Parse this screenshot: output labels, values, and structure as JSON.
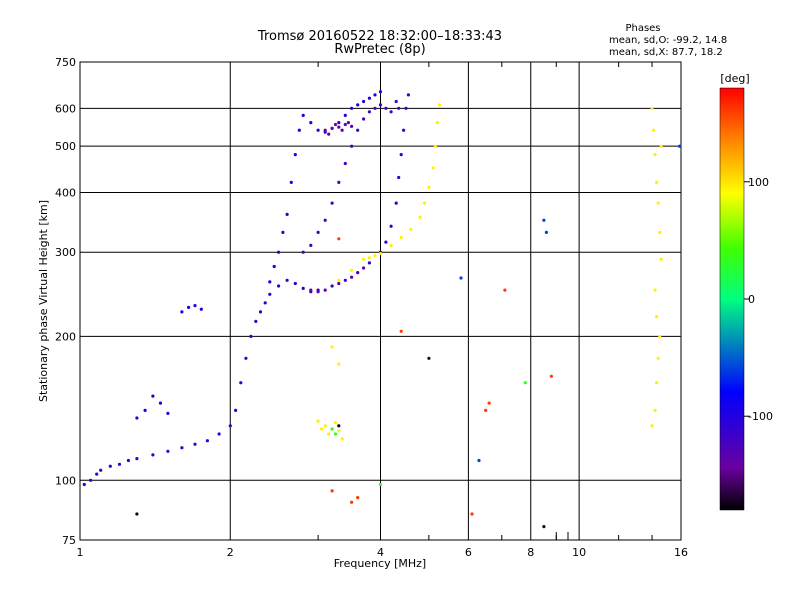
{
  "chart_data": {
    "type": "scatter",
    "title": "Tromsø 20160522 18:32:00–18:33:43",
    "subtitle": "RwPretec (8p)",
    "xlabel": "Frequency [MHz]",
    "ylabel": "Stationary phase Virtual Height [km]",
    "x_scale": "log2",
    "y_scale": "log",
    "xlim": [
      1,
      16
    ],
    "ylim": [
      75,
      750
    ],
    "x_ticks": [
      1,
      2,
      4,
      6,
      8,
      10,
      16
    ],
    "y_ticks": [
      75,
      100,
      200,
      300,
      400,
      500,
      600,
      750
    ],
    "grid": true,
    "stats": {
      "heading": "Phases",
      "line_o": "mean, sd,O: -99.2, 14.8",
      "line_x": "mean, sd,X:  87.7, 18.2"
    },
    "colorbar": {
      "label": "[deg]",
      "ticks": [
        100,
        0,
        -100
      ],
      "range": [
        -180,
        180
      ]
    },
    "series": [
      {
        "phase": -110,
        "points": [
          [
            1.02,
            98
          ],
          [
            1.05,
            100
          ],
          [
            1.08,
            103
          ],
          [
            1.1,
            105
          ],
          [
            1.15,
            107
          ],
          [
            1.2,
            108
          ],
          [
            1.25,
            110
          ],
          [
            1.3,
            111
          ],
          [
            1.4,
            113
          ],
          [
            1.5,
            115
          ],
          [
            1.6,
            117
          ],
          [
            1.7,
            119
          ],
          [
            1.8,
            121
          ],
          [
            1.9,
            125
          ],
          [
            2.0,
            130
          ],
          [
            2.05,
            140
          ],
          [
            2.1,
            160
          ],
          [
            2.15,
            180
          ],
          [
            2.2,
            200
          ],
          [
            2.25,
            215
          ],
          [
            2.3,
            225
          ],
          [
            2.35,
            235
          ],
          [
            2.4,
            245
          ],
          [
            2.5,
            255
          ],
          [
            2.6,
            262
          ],
          [
            2.7,
            258
          ],
          [
            2.8,
            252
          ],
          [
            2.9,
            248
          ],
          [
            3.0,
            250
          ],
          [
            3.2,
            255
          ],
          [
            3.4,
            262
          ],
          [
            3.6,
            272
          ],
          [
            3.8,
            285
          ],
          [
            4.0,
            300
          ],
          [
            4.1,
            315
          ],
          [
            4.2,
            340
          ],
          [
            4.3,
            380
          ],
          [
            4.35,
            430
          ],
          [
            4.4,
            480
          ],
          [
            4.45,
            540
          ],
          [
            4.5,
            600
          ],
          [
            4.55,
            640
          ]
        ]
      },
      {
        "phase": -100,
        "points": [
          [
            1.3,
            135
          ],
          [
            1.35,
            140
          ],
          [
            1.4,
            150
          ],
          [
            1.45,
            145
          ],
          [
            1.5,
            138
          ],
          [
            1.6,
            225
          ],
          [
            1.65,
            230
          ],
          [
            1.7,
            232
          ],
          [
            1.75,
            228
          ],
          [
            2.4,
            260
          ],
          [
            2.45,
            280
          ],
          [
            2.5,
            300
          ],
          [
            2.55,
            330
          ],
          [
            2.6,
            360
          ],
          [
            2.65,
            420
          ],
          [
            2.7,
            480
          ],
          [
            2.75,
            540
          ],
          [
            2.8,
            580
          ],
          [
            2.9,
            560
          ],
          [
            3.0,
            540
          ],
          [
            3.1,
            535
          ],
          [
            3.2,
            545
          ],
          [
            3.3,
            560
          ],
          [
            3.4,
            580
          ],
          [
            3.5,
            600
          ],
          [
            3.6,
            610
          ],
          [
            3.7,
            620
          ],
          [
            3.8,
            630
          ],
          [
            3.9,
            640
          ],
          [
            4.0,
            650
          ]
        ]
      },
      {
        "phase": -120,
        "points": [
          [
            2.8,
            300
          ],
          [
            2.9,
            310
          ],
          [
            3.0,
            330
          ],
          [
            3.1,
            350
          ],
          [
            3.2,
            380
          ],
          [
            3.3,
            420
          ],
          [
            3.4,
            460
          ],
          [
            3.5,
            500
          ],
          [
            3.6,
            540
          ],
          [
            3.7,
            570
          ],
          [
            3.8,
            590
          ],
          [
            3.9,
            600
          ],
          [
            4.0,
            610
          ],
          [
            4.1,
            600
          ],
          [
            4.2,
            590
          ],
          [
            4.3,
            620
          ],
          [
            4.35,
            600
          ]
        ]
      },
      {
        "phase": -140,
        "points": [
          [
            3.1,
            540
          ],
          [
            3.15,
            530
          ],
          [
            3.2,
            545
          ],
          [
            3.25,
            555
          ],
          [
            3.3,
            548
          ],
          [
            3.35,
            540
          ],
          [
            3.4,
            555
          ],
          [
            3.45,
            560
          ],
          [
            3.5,
            550
          ],
          [
            2.9,
            250
          ],
          [
            3.0,
            248
          ],
          [
            3.1,
            250
          ],
          [
            3.3,
            258
          ],
          [
            3.5,
            266
          ],
          [
            3.7,
            278
          ]
        ]
      },
      {
        "phase": 95,
        "points": [
          [
            3.3,
            262
          ],
          [
            3.5,
            275
          ],
          [
            3.7,
            290
          ],
          [
            3.8,
            292
          ],
          [
            3.9,
            295
          ],
          [
            4.0,
            298
          ],
          [
            4.2,
            310
          ],
          [
            4.4,
            322
          ],
          [
            4.6,
            335
          ],
          [
            4.8,
            355
          ],
          [
            4.9,
            380
          ],
          [
            5.0,
            410
          ],
          [
            5.1,
            450
          ],
          [
            5.15,
            500
          ],
          [
            5.2,
            560
          ],
          [
            5.25,
            610
          ],
          [
            3.1,
            130
          ],
          [
            3.15,
            125
          ],
          [
            3.2,
            128
          ],
          [
            3.25,
            132
          ],
          [
            3.3,
            127
          ],
          [
            3.35,
            122
          ],
          [
            3.0,
            133
          ],
          [
            3.05,
            128
          ],
          [
            14,
            600
          ],
          [
            14.1,
            540
          ],
          [
            14.2,
            480
          ],
          [
            14.3,
            420
          ],
          [
            14.4,
            380
          ],
          [
            14.5,
            330
          ],
          [
            14.6,
            290
          ],
          [
            14.2,
            250
          ],
          [
            14.3,
            220
          ],
          [
            14.5,
            200
          ],
          [
            14.4,
            180
          ],
          [
            14.3,
            160
          ],
          [
            14.2,
            140
          ],
          [
            14.0,
            130
          ],
          [
            14.6,
            500
          ],
          [
            3.2,
            190
          ],
          [
            3.3,
            175
          ]
        ]
      },
      {
        "phase": 160,
        "points": [
          [
            3.3,
            320
          ],
          [
            3.5,
            90
          ],
          [
            3.6,
            92
          ],
          [
            4.4,
            205
          ],
          [
            6.1,
            85
          ],
          [
            6.5,
            140
          ],
          [
            6.6,
            145
          ],
          [
            7.1,
            250
          ],
          [
            8.8,
            165
          ],
          [
            3.2,
            95
          ]
        ]
      },
      {
        "phase": 30,
        "points": [
          [
            3.2,
            128
          ],
          [
            3.25,
            125
          ],
          [
            4.0,
            98
          ],
          [
            7.8,
            160
          ],
          [
            3.3,
            130
          ]
        ]
      },
      {
        "phase": -60,
        "points": [
          [
            5.8,
            265
          ],
          [
            6.3,
            110
          ],
          [
            8.5,
            350
          ],
          [
            8.6,
            330
          ],
          [
            15.9,
            500
          ]
        ]
      },
      {
        "phase": -170,
        "points": [
          [
            3.3,
            130
          ],
          [
            5.0,
            180
          ],
          [
            8.5,
            80
          ],
          [
            1.3,
            85
          ]
        ]
      }
    ]
  }
}
